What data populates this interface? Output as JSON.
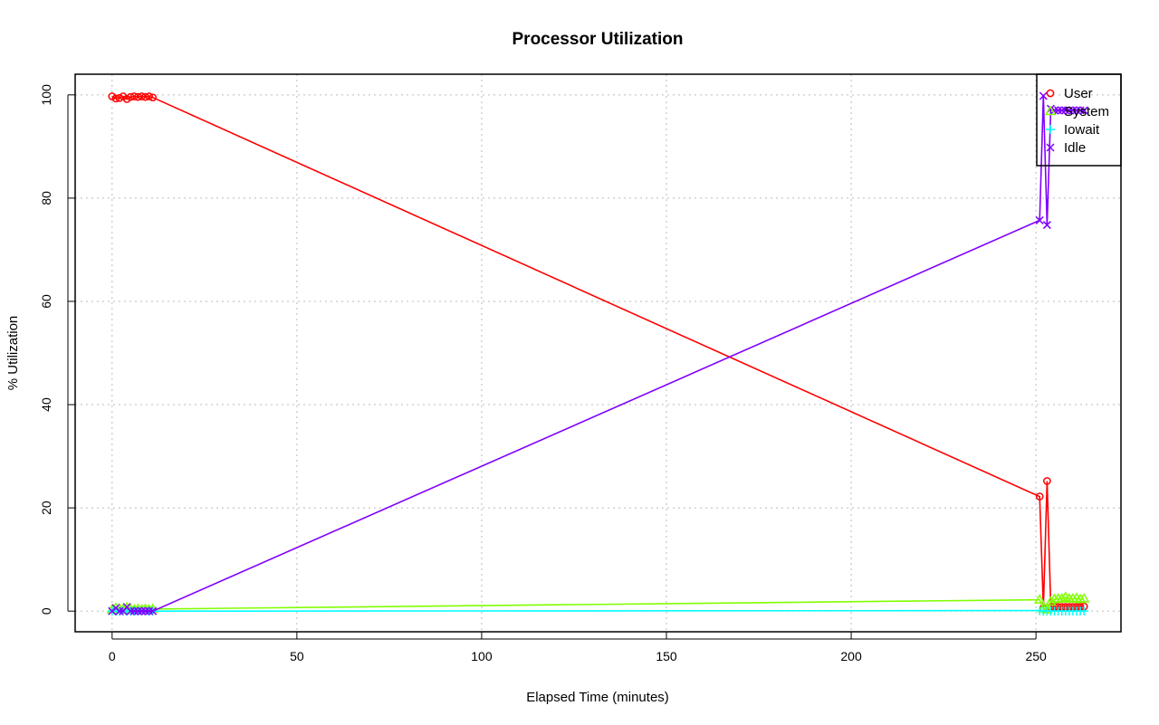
{
  "chart_data": {
    "type": "line",
    "title": "Processor Utilization",
    "xlabel": "Elapsed Time (minutes)",
    "ylabel": "% Utilization",
    "xlim": [
      -10,
      273
    ],
    "ylim": [
      -4,
      104
    ],
    "xticks": [
      0,
      50,
      100,
      150,
      200,
      250
    ],
    "yticks": [
      0,
      20,
      40,
      60,
      80,
      100
    ],
    "grid": true,
    "legend_position": "top-right",
    "series": [
      {
        "name": "User",
        "color": "#ff0000",
        "marker": "circle",
        "x": [
          0,
          1,
          2,
          3,
          4,
          5,
          6,
          7,
          8,
          9,
          10,
          11,
          251,
          252,
          253,
          254,
          255,
          256,
          257,
          258,
          259,
          260,
          261,
          262,
          263
        ],
        "y": [
          99.7,
          99.3,
          99.4,
          99.7,
          99.2,
          99.6,
          99.7,
          99.6,
          99.7,
          99.6,
          99.7,
          99.5,
          22.2,
          0.6,
          25.2,
          0.8,
          0.8,
          0.8,
          0.8,
          0.8,
          0.8,
          0.8,
          0.8,
          0.8,
          0.9
        ]
      },
      {
        "name": "System",
        "color": "#80ff00",
        "marker": "triangle",
        "x": [
          0,
          1,
          2,
          3,
          4,
          5,
          6,
          7,
          8,
          9,
          10,
          11,
          251,
          252,
          253,
          254,
          255,
          256,
          257,
          258,
          259,
          260,
          261,
          262,
          263
        ],
        "y": [
          0.3,
          0.6,
          0.5,
          0.3,
          0.7,
          0.4,
          0.3,
          0.4,
          0.3,
          0.4,
          0.3,
          0.4,
          2.2,
          0.5,
          0.3,
          1.8,
          2.3,
          2.4,
          2.4,
          2.7,
          2.4,
          2.4,
          2.5,
          2.3,
          2.4
        ]
      },
      {
        "name": "Iowait",
        "color": "#00ffff",
        "marker": "plus",
        "x": [
          0,
          1,
          2,
          3,
          4,
          5,
          6,
          7,
          8,
          9,
          10,
          11,
          251,
          252,
          253,
          254,
          255,
          256,
          257,
          258,
          259,
          260,
          261,
          262,
          263
        ],
        "y": [
          0,
          0,
          0,
          0,
          0,
          0,
          0,
          0,
          0,
          0,
          0,
          0,
          0.1,
          0,
          0,
          0,
          0,
          0,
          0,
          0,
          0,
          0,
          0,
          0,
          0
        ]
      },
      {
        "name": "Idle",
        "color": "#8000ff",
        "marker": "x",
        "x": [
          0,
          1,
          2,
          3,
          4,
          5,
          6,
          7,
          8,
          9,
          10,
          11,
          251,
          252,
          253,
          254,
          255,
          256,
          257,
          258,
          259,
          260,
          261,
          262,
          263
        ],
        "y": [
          0,
          0.6,
          0,
          0,
          0.8,
          0,
          0,
          0,
          0,
          0,
          0,
          0,
          75.7,
          99.8,
          74.8,
          97.3,
          97.0,
          97.0,
          97.0,
          97.0,
          97.0,
          97.0,
          97.0,
          97.0,
          97.0
        ]
      }
    ]
  }
}
